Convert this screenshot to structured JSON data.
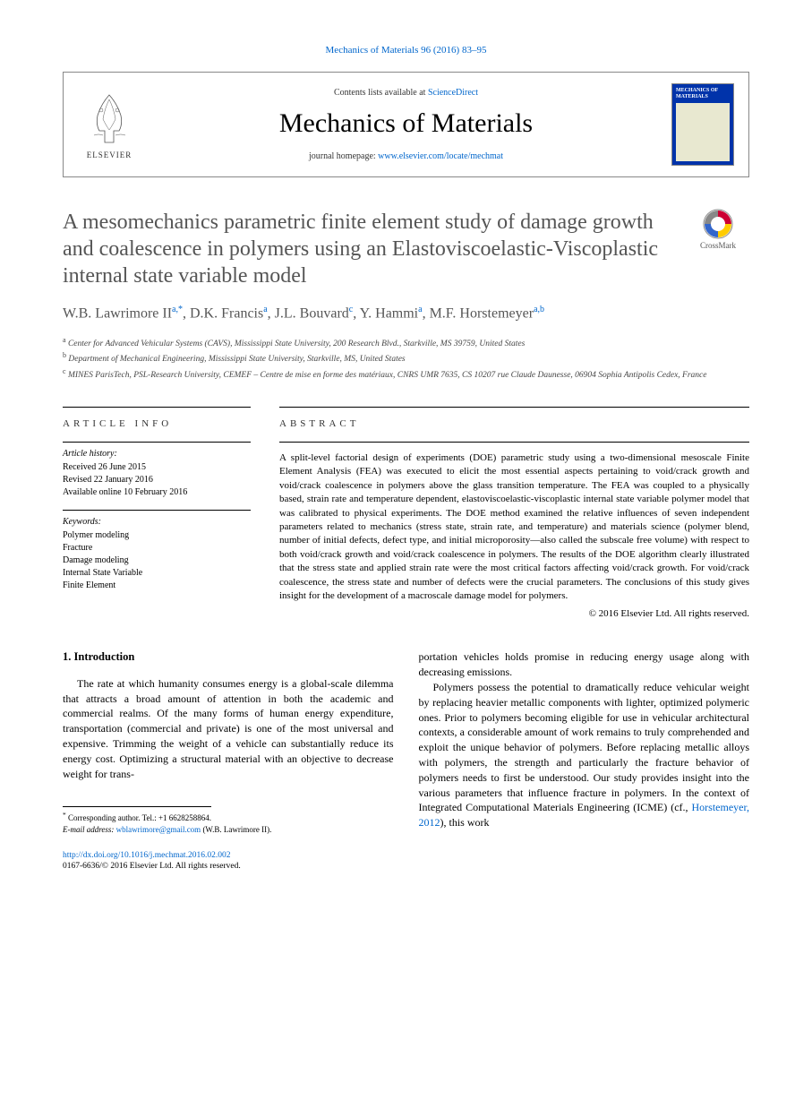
{
  "header": {
    "citation": "Mechanics of Materials 96 (2016) 83–95",
    "contents_prefix": "Contents lists available at ",
    "contents_link": "ScienceDirect",
    "journal_name": "Mechanics of Materials",
    "homepage_prefix": "journal homepage: ",
    "homepage_url": "www.elsevier.com/locate/mechmat",
    "elsevier_label": "ELSEVIER",
    "cover_title": "MECHANICS OF MATERIALS"
  },
  "crossmark": {
    "label": "CrossMark"
  },
  "article": {
    "title": "A mesomechanics parametric finite element study of damage growth and coalescence in polymers using an Elastoviscoelastic-Viscoplastic internal state variable model",
    "authors_html": "W.B. Lawrimore II<sup>a,*</sup>, D.K. Francis<sup>a</sup>, J.L. Bouvard<sup>c</sup>, Y. Hammi<sup>a</sup>, M.F. Horstemeyer<sup>a,b</sup>",
    "affiliations": {
      "a": "Center for Advanced Vehicular Systems (CAVS), Mississippi State University, 200 Research Blvd., Starkville, MS 39759, United States",
      "b": "Department of Mechanical Engineering, Mississippi State University, Starkville, MS, United States",
      "c": "MINES ParisTech, PSL-Research University, CEMEF – Centre de mise en forme des matériaux, CNRS UMR 7635, CS 10207 rue Claude Daunesse, 06904 Sophia Antipolis Cedex, France"
    }
  },
  "info": {
    "header_info": "ARTICLE INFO",
    "header_abstract": "ABSTRACT",
    "history_heading": "Article history:",
    "history": [
      "Received 26 June 2015",
      "Revised 22 January 2016",
      "Available online 10 February 2016"
    ],
    "keywords_heading": "Keywords:",
    "keywords": [
      "Polymer modeling",
      "Fracture",
      "Damage modeling",
      "Internal State Variable",
      "Finite Element"
    ]
  },
  "abstract": {
    "text": "A split-level factorial design of experiments (DOE) parametric study using a two-dimensional mesoscale Finite Element Analysis (FEA) was executed to elicit the most essential aspects pertaining to void/crack growth and void/crack coalescence in polymers above the glass transition temperature. The FEA was coupled to a physically based, strain rate and temperature dependent, elastoviscoelastic-viscoplastic internal state variable polymer model that was calibrated to physical experiments. The DOE method examined the relative influences of seven independent parameters related to mechanics (stress state, strain rate, and temperature) and materials science (polymer blend, number of initial defects, defect type, and initial microporosity—also called the subscale free volume) with respect to both void/crack growth and void/crack coalescence in polymers. The results of the DOE algorithm clearly illustrated that the stress state and applied strain rate were the most critical factors affecting void/crack growth. For void/crack coalescence, the stress state and number of defects were the crucial parameters. The conclusions of this study gives insight for the development of a macroscale damage model for polymers.",
    "copyright": "© 2016 Elsevier Ltd. All rights reserved."
  },
  "body": {
    "section_heading": "1. Introduction",
    "col1_p1": "The rate at which humanity consumes energy is a global-scale dilemma that attracts a broad amount of attention in both the academic and commercial realms. Of the many forms of human energy expenditure, transportation (commercial and private) is one of the most universal and expensive. Trimming the weight of a vehicle can substantially reduce its energy cost. Optimizing a structural material with an objective to decrease weight for trans-",
    "col2_p1": "portation vehicles holds promise in reducing energy usage along with decreasing emissions.",
    "col2_p2_pre": "Polymers possess the potential to dramatically reduce vehicular weight by replacing heavier metallic components with lighter, optimized polymeric ones. Prior to polymers becoming eligible for use in vehicular architectural contexts, a considerable amount of work remains to truly comprehended and exploit the unique behavior of polymers. Before replacing metallic alloys with polymers, the strength and particularly the fracture behavior of polymers needs to first be understood. Our study provides insight into the various parameters that influence fracture in polymers. In the context of Integrated Computational Materials Engineering (ICME) (cf., ",
    "col2_p2_link": "Horstemeyer, 2012",
    "col2_p2_post": "), this work"
  },
  "footnotes": {
    "corr": "Corresponding author. Tel.: +1 6628258864.",
    "email_label": "E-mail address: ",
    "email": "wblawrimore@gmail.com",
    "email_suffix": " (W.B. Lawrimore II)."
  },
  "footer": {
    "doi": "http://dx.doi.org/10.1016/j.mechmat.2016.02.002",
    "issn_copyright": "0167-6636/© 2016 Elsevier Ltd. All rights reserved."
  },
  "colors": {
    "link": "#0066cc",
    "title_gray": "#555555",
    "cover_blue": "#0033aa"
  }
}
